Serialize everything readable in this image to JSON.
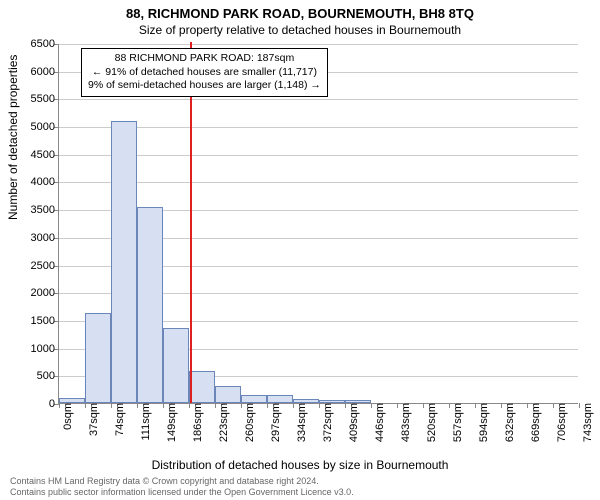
{
  "title": "88, RICHMOND PARK ROAD, BOURNEMOUTH, BH8 8TQ",
  "subtitle": "Size of property relative to detached houses in Bournemouth",
  "chart": {
    "type": "histogram",
    "xlabel": "Distribution of detached houses by size in Bournemouth",
    "ylabel": "Number of detached properties",
    "ylim": [
      0,
      6500
    ],
    "ytick_step": 500,
    "x_tick_labels": [
      "0sqm",
      "37sqm",
      "74sqm",
      "111sqm",
      "149sqm",
      "186sqm",
      "223sqm",
      "260sqm",
      "297sqm",
      "334sqm",
      "372sqm",
      "409sqm",
      "446sqm",
      "483sqm",
      "520sqm",
      "557sqm",
      "594sqm",
      "632sqm",
      "669sqm",
      "706sqm",
      "743sqm"
    ],
    "bar_values": [
      95,
      1620,
      5100,
      3540,
      1360,
      580,
      300,
      150,
      150,
      70,
      60,
      50,
      0,
      0,
      0,
      0,
      0,
      0,
      0,
      0
    ],
    "bar_fill": "#d6e0f2",
    "bar_border": "#6b86b8",
    "grid_color": "#cccccc",
    "background": "#ffffff",
    "ref_line_value": 187,
    "ref_line_xmax": 743,
    "ref_line_color": "#e02020"
  },
  "annotation": {
    "line1": "88 RICHMOND PARK ROAD: 187sqm",
    "line2": "← 91% of detached houses are smaller (11,717)",
    "line3": "9% of semi-detached houses are larger (1,148) →"
  },
  "footer": {
    "line1": "Contains HM Land Registry data © Crown copyright and database right 2024.",
    "line2": "Contains public sector information licensed under the Open Government Licence v3.0."
  }
}
